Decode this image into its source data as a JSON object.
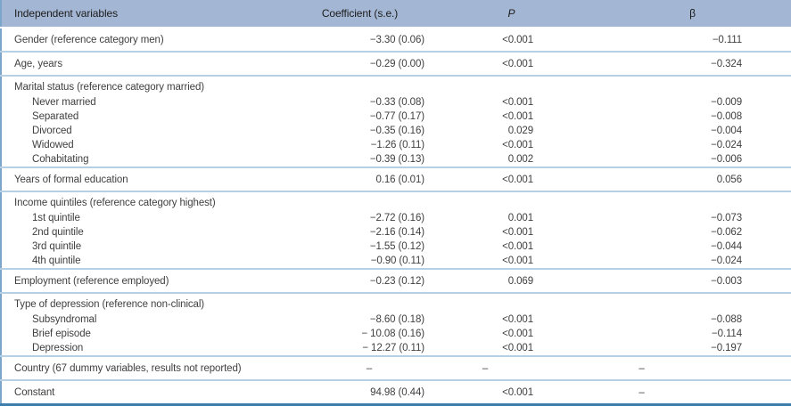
{
  "colors": {
    "header_bg": "#a3b6d3",
    "separator": "#b5cfe4",
    "side_border": "#7ba6c9",
    "bottom_border": "#3e7eac",
    "text": "#3f3f3f"
  },
  "table": {
    "columns": [
      {
        "label": "Independent variables"
      },
      {
        "label": "Coefficient (s.e.)"
      },
      {
        "label": "P"
      },
      {
        "label": "β"
      }
    ],
    "rows": [
      {
        "type": "plain",
        "section_start": false,
        "label": "Gender (reference category men)",
        "coef": "−3.30 (0.06)",
        "p": "<0.001",
        "beta": "−0.111"
      },
      {
        "type": "plain",
        "section_start": true,
        "label": "Age, years",
        "coef": "−0.29 (0.00)",
        "p": "<0.001",
        "beta": "−0.324"
      },
      {
        "type": "group",
        "section_start": true,
        "label": "Marital status (reference category married)",
        "coef": "",
        "p": "",
        "beta": ""
      },
      {
        "type": "sub",
        "section_start": false,
        "label": "Never married",
        "coef": "−0.33 (0.08)",
        "p": "<0.001",
        "beta": "−0.009"
      },
      {
        "type": "sub",
        "section_start": false,
        "label": "Separated",
        "coef": "−0.77 (0.17)",
        "p": "<0.001",
        "beta": "−0.008"
      },
      {
        "type": "sub",
        "section_start": false,
        "label": "Divorced",
        "coef": "−0.35 (0.16)",
        "p": "0.029",
        "beta": "−0.004"
      },
      {
        "type": "sub",
        "section_start": false,
        "label": "Widowed",
        "coef": "−1.26 (0.11)",
        "p": "<0.001",
        "beta": "−0.024"
      },
      {
        "type": "sub",
        "section_start": false,
        "label": "Cohabitating",
        "coef": "−0.39 (0.13)",
        "p": "0.002",
        "beta": "−0.006"
      },
      {
        "type": "plain",
        "section_start": true,
        "label": "Years of formal education",
        "coef": "0.16 (0.01)",
        "p": "<0.001",
        "beta": "0.056"
      },
      {
        "type": "group",
        "section_start": true,
        "label": "Income quintiles (reference category highest)",
        "coef": "",
        "p": "",
        "beta": ""
      },
      {
        "type": "sub",
        "section_start": false,
        "label": "1st quintile",
        "coef": "−2.72 (0.16)",
        "p": "0.001",
        "beta": "−0.073"
      },
      {
        "type": "sub",
        "section_start": false,
        "label": "2nd quintile",
        "coef": "−2.16 (0.14)",
        "p": "<0.001",
        "beta": "−0.062"
      },
      {
        "type": "sub",
        "section_start": false,
        "label": "3rd quintile",
        "coef": "−1.55 (0.12)",
        "p": "<0.001",
        "beta": "−0.044"
      },
      {
        "type": "sub",
        "section_start": false,
        "label": "4th quintile",
        "coef": "−0.90 (0.11)",
        "p": "<0.001",
        "beta": "−0.024"
      },
      {
        "type": "plain",
        "section_start": true,
        "label": "Employment (reference employed)",
        "coef": "−0.23 (0.12)",
        "p": "0.069",
        "beta": "−0.003"
      },
      {
        "type": "group",
        "section_start": true,
        "label": "Type of depression (reference non-clinical)",
        "coef": "",
        "p": "",
        "beta": ""
      },
      {
        "type": "sub",
        "section_start": false,
        "label": "Subsyndromal",
        "coef": "−8.60 (0.18)",
        "p": "<0.001",
        "beta": "−0.088"
      },
      {
        "type": "sub",
        "section_start": false,
        "label": "Brief episode",
        "coef": "− 10.08 (0.16)",
        "p": "<0.001",
        "beta": "−0.114"
      },
      {
        "type": "sub",
        "section_start": false,
        "label": "Depression",
        "coef": "− 12.27 (0.11)",
        "p": "<0.001",
        "beta": "−0.197"
      },
      {
        "type": "plain",
        "section_start": true,
        "label": "Country (67 dummy variables, results not reported)",
        "coef": "–",
        "p": "–",
        "beta": "–"
      },
      {
        "type": "plain",
        "section_start": true,
        "label": "Constant",
        "coef": "94.98 (0.44)",
        "p": "<0.001",
        "beta": "–"
      }
    ]
  }
}
